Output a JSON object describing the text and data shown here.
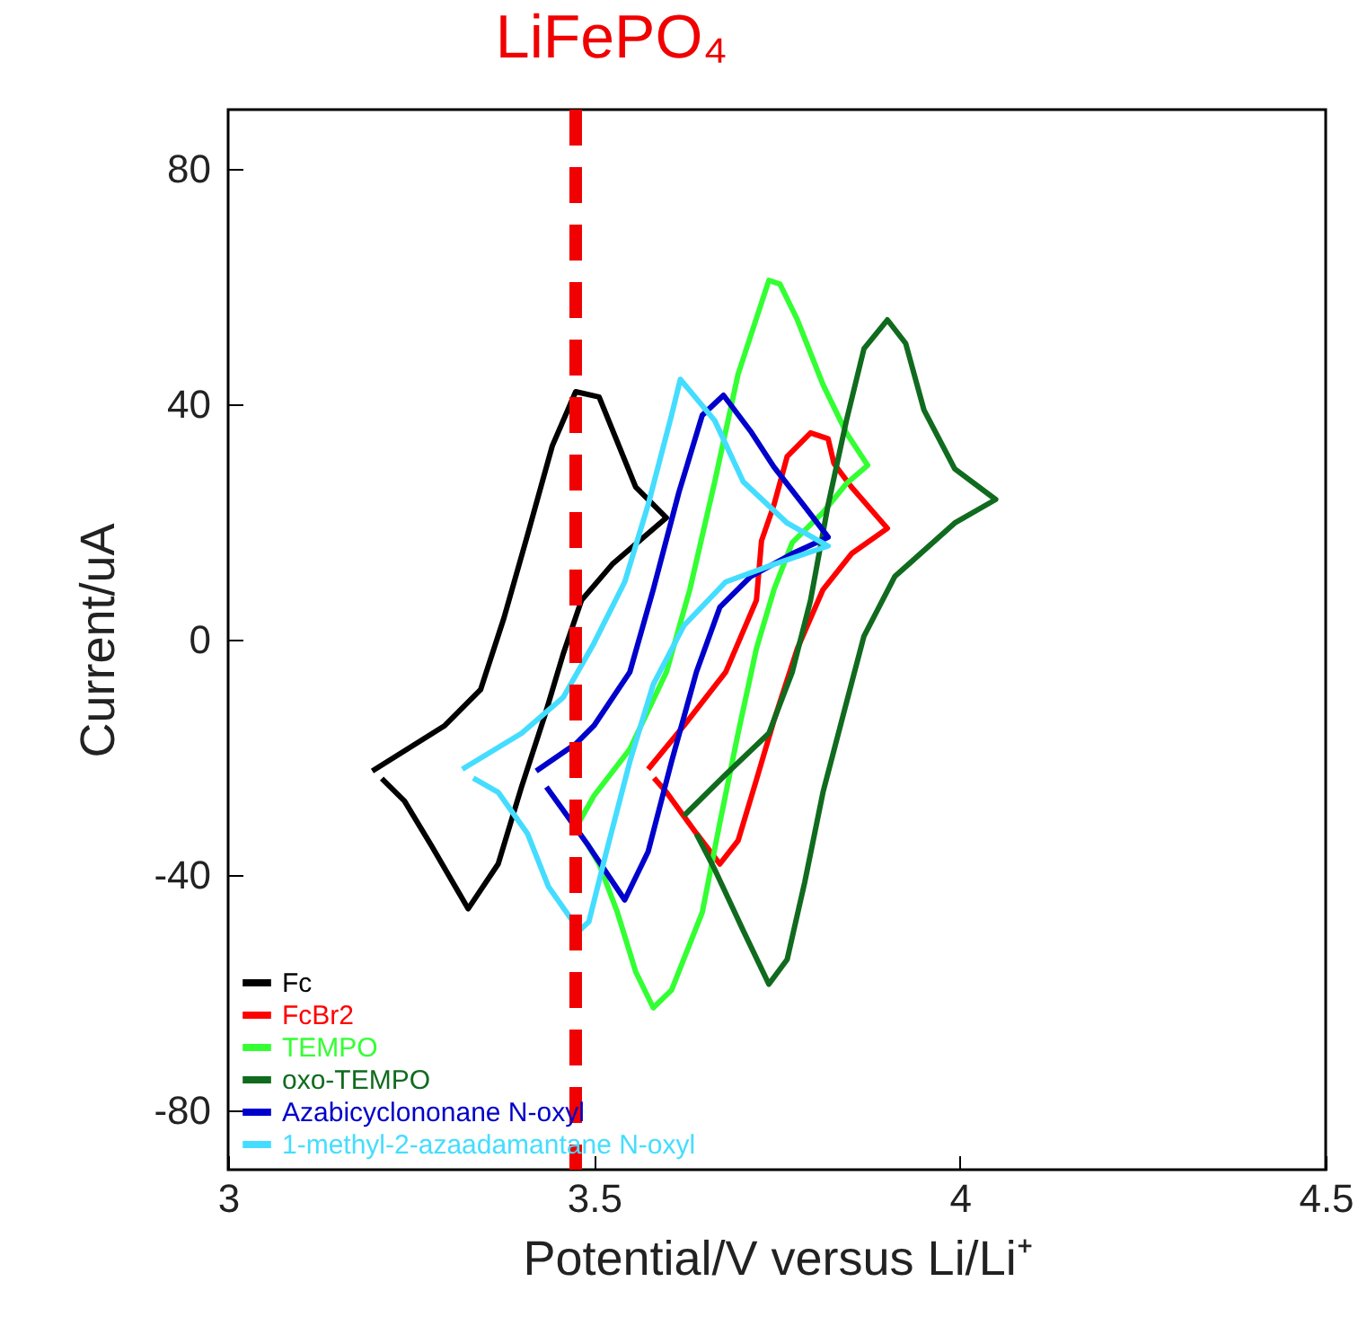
{
  "chart_data": {
    "type": "line",
    "xlabel": "Potential/V versus Li/Li⁺",
    "ylabel": "Current/uA",
    "xlim": [
      3,
      4.5
    ],
    "xticks": [
      3,
      3.5,
      4,
      4.5
    ],
    "ylim": [
      -90,
      90
    ],
    "yticks": [
      -80,
      -40,
      0,
      40,
      80
    ],
    "grid": false,
    "legend": "bottom left",
    "line_style": "solid",
    "ref_lines": [
      {
        "axis": "x",
        "value": 3.475,
        "label": "LiFePO₄",
        "color": "#f00000",
        "line_style": "dashed"
      }
    ],
    "series": [
      {
        "name": "Fc",
        "color": "#000000",
        "x": [
          3.197,
          3.296,
          3.345,
          3.377,
          3.409,
          3.443,
          3.475,
          3.507,
          3.557,
          3.599,
          3.525,
          3.483,
          3.458,
          3.433,
          3.401,
          3.369,
          3.328,
          3.278,
          3.241,
          3.21
        ],
        "values": [
          -22.3,
          -14.6,
          -8.5,
          3.7,
          17.7,
          32.9,
          42.1,
          41.2,
          25.9,
          20.7,
          12.8,
          6.7,
          -2.4,
          -12.8,
          -25,
          -38.1,
          -45.7,
          -35,
          -27.4,
          -23.6
        ]
      },
      {
        "name": "FcBr2",
        "color": "#ff0000",
        "x": [
          3.574,
          3.623,
          3.68,
          3.722,
          3.729,
          3.746,
          3.764,
          3.796,
          3.82,
          3.828,
          3.852,
          3.901,
          3.852,
          3.813,
          3.778,
          3.746,
          3.722,
          3.697,
          3.672,
          3.64,
          3.599,
          3.582
        ],
        "values": [
          -22,
          -14.6,
          -5.5,
          6.7,
          16.8,
          22.9,
          31.1,
          35.1,
          34.1,
          29.9,
          25.9,
          18.9,
          14.6,
          8.5,
          -1.5,
          -13.7,
          -23.8,
          -34.1,
          -38.1,
          -32.9,
          -25.9,
          -23.5
        ]
      },
      {
        "name": "TEMPO",
        "color": "#33ff33",
        "x": [
          3.475,
          3.5,
          3.549,
          3.599,
          3.631,
          3.665,
          3.697,
          3.739,
          3.754,
          3.778,
          3.813,
          3.845,
          3.874,
          3.845,
          3.813,
          3.771,
          3.746,
          3.722,
          3.697,
          3.672,
          3.648,
          3.606,
          3.581,
          3.557,
          3.532,
          3.507,
          3.49
        ],
        "values": [
          -32,
          -26.5,
          -18.6,
          -5.5,
          8.5,
          26.8,
          45.1,
          61,
          60.4,
          54.3,
          43.3,
          35.1,
          29.6,
          26.5,
          21.6,
          16.5,
          8.5,
          -1.5,
          -15.9,
          -31.1,
          -46.3,
          -59.5,
          -62.5,
          -56.4,
          -46.3,
          -38.1,
          -34.5
        ]
      },
      {
        "name": "oxo-TEMPO",
        "color": "#106b1e",
        "x": [
          3.623,
          3.68,
          3.739,
          3.771,
          3.796,
          3.82,
          3.845,
          3.869,
          3.901,
          3.926,
          3.951,
          3.993,
          4.049,
          3.993,
          3.911,
          3.869,
          3.845,
          3.813,
          3.788,
          3.764,
          3.739,
          3.704,
          3.665,
          3.64
        ],
        "values": [
          -29.9,
          -22.9,
          -15.9,
          -5.5,
          6.7,
          22.9,
          37.2,
          49.4,
          54.3,
          50.3,
          39,
          29,
          23.8,
          19.8,
          10.7,
          0.6,
          -10.7,
          -25.9,
          -41.2,
          -54.3,
          -58.5,
          -49.4,
          -39,
          -33
        ]
      },
      {
        "name": "Azabicyclononane N-oxyl",
        "color": "#0000cc",
        "x": [
          3.421,
          3.475,
          3.5,
          3.549,
          3.581,
          3.616,
          3.648,
          3.677,
          3.714,
          3.746,
          3.788,
          3.82,
          3.771,
          3.714,
          3.672,
          3.64,
          3.606,
          3.574,
          3.542,
          3.493,
          3.458,
          3.435
        ],
        "values": [
          -22.3,
          -17.7,
          -14.6,
          -5.5,
          8.5,
          25,
          38.1,
          41.5,
          35.4,
          29.3,
          22.6,
          17.4,
          14.6,
          10.7,
          5.5,
          -5.5,
          -20.7,
          -36,
          -44.2,
          -35.1,
          -29,
          -25
        ]
      },
      {
        "name": "1-methyl-2-azaadamantane N-oxyl",
        "color": "#44ddff",
        "x": [
          3.32,
          3.401,
          3.458,
          3.5,
          3.542,
          3.574,
          3.606,
          3.618,
          3.665,
          3.704,
          3.764,
          3.82,
          3.746,
          3.68,
          3.623,
          3.581,
          3.549,
          3.517,
          3.493,
          3.48,
          3.438,
          3.409,
          3.369,
          3.335
        ],
        "values": [
          -22,
          -15.9,
          -9.8,
          -0.6,
          9.8,
          22.9,
          38.1,
          44.2,
          37.2,
          26.8,
          19.8,
          15.9,
          12.8,
          9.8,
          2.4,
          -7.6,
          -20.7,
          -36,
          -47.9,
          -49.4,
          -42,
          -32.9,
          -25.9,
          -23.5
        ]
      }
    ]
  }
}
